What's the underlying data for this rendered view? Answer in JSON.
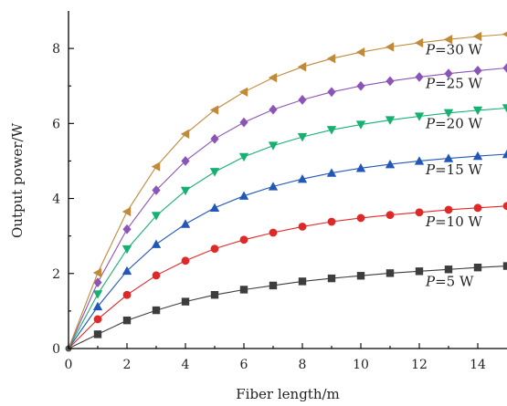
{
  "chart_data": {
    "type": "line",
    "xlabel": "Fiber length/m",
    "ylabel": "Output power/W",
    "xlim": [
      0,
      15
    ],
    "ylim": [
      0,
      9
    ],
    "xticks": [
      "0",
      "2",
      "4",
      "6",
      "8",
      "10",
      "12",
      "14"
    ],
    "yticks": [
      "0",
      "2",
      "4",
      "6",
      "8"
    ],
    "grid": false,
    "legend": "inline labels at right end of each curve",
    "x": [
      1,
      2,
      3,
      4,
      5,
      6,
      7,
      8,
      9,
      10,
      11,
      12,
      13,
      14,
      15
    ],
    "series": [
      {
        "label_prefix": "P",
        "label_suffix": "=5 W",
        "color": "#3d3d3d",
        "marker": "square",
        "values": [
          0.38,
          0.75,
          1.02,
          1.25,
          1.43,
          1.57,
          1.68,
          1.79,
          1.87,
          1.94,
          2.01,
          2.06,
          2.11,
          2.16,
          2.2
        ]
      },
      {
        "label_prefix": "P",
        "label_suffix": "=10 W",
        "color": "#e02828",
        "marker": "circle",
        "values": [
          0.78,
          1.43,
          1.95,
          2.34,
          2.66,
          2.9,
          3.09,
          3.25,
          3.38,
          3.48,
          3.56,
          3.63,
          3.7,
          3.75,
          3.8
        ]
      },
      {
        "label_prefix": "P",
        "label_suffix": "=15 W",
        "color": "#2158b8",
        "marker": "triangle-up",
        "values": [
          1.12,
          2.07,
          2.78,
          3.32,
          3.75,
          4.07,
          4.32,
          4.52,
          4.68,
          4.81,
          4.91,
          5.0,
          5.07,
          5.13,
          5.18
        ]
      },
      {
        "label_prefix": "P",
        "label_suffix": "=20 W",
        "color": "#16b070",
        "marker": "triangle-down",
        "values": [
          1.45,
          2.65,
          3.54,
          4.21,
          4.71,
          5.11,
          5.41,
          5.64,
          5.83,
          5.97,
          6.09,
          6.19,
          6.28,
          6.35,
          6.41
        ]
      },
      {
        "label_prefix": "P",
        "label_suffix": "=25 W",
        "color": "#8b55b8",
        "marker": "diamond",
        "values": [
          1.76,
          3.18,
          4.22,
          5.0,
          5.59,
          6.03,
          6.37,
          6.63,
          6.84,
          7.0,
          7.13,
          7.24,
          7.33,
          7.41,
          7.48
        ]
      },
      {
        "label_prefix": "P",
        "label_suffix": "=30 W",
        "color": "#c08a3a",
        "marker": "triangle-left",
        "values": [
          2.02,
          3.65,
          4.85,
          5.72,
          6.36,
          6.84,
          7.22,
          7.51,
          7.73,
          7.9,
          8.04,
          8.15,
          8.24,
          8.32,
          8.38
        ]
      }
    ]
  }
}
